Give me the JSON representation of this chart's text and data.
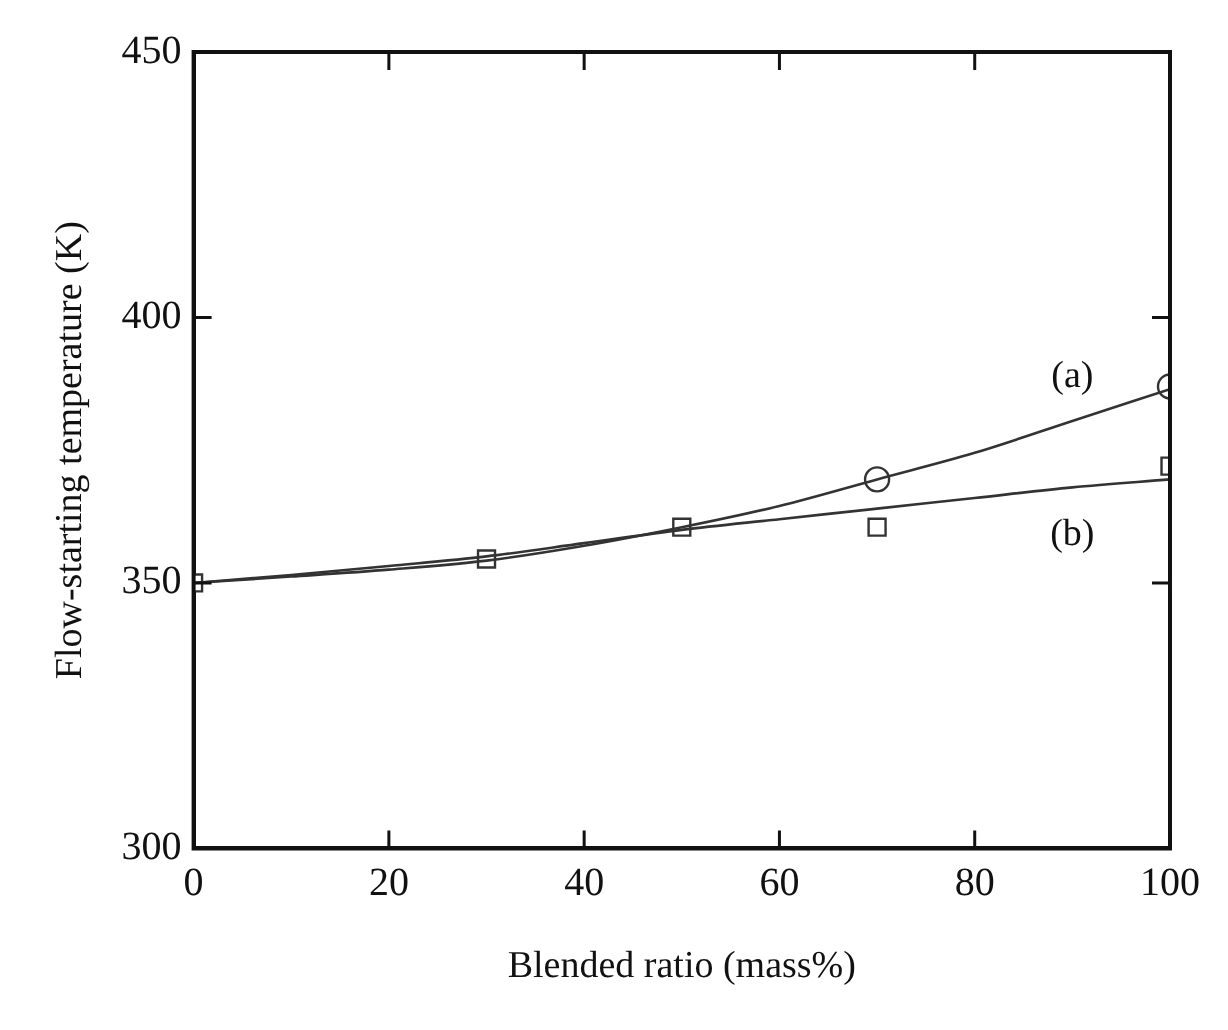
{
  "chart_data": {
    "type": "scatter",
    "xlabel": "Blended ratio (mass%)",
    "ylabel": "Flow-starting temperature (K)",
    "xlim": [
      0,
      100
    ],
    "xticks": [
      0,
      20,
      40,
      60,
      80,
      100
    ],
    "ylim": [
      300,
      450
    ],
    "yticks": [
      300,
      350,
      400,
      450
    ],
    "grid": false,
    "legend": false,
    "series": [
      {
        "type": "line",
        "name": "(a)",
        "color": "#333333",
        "marker": "none",
        "x": [
          0,
          10,
          20,
          30,
          40,
          50,
          60,
          70,
          80,
          90,
          100
        ],
        "values": [
          350,
          351.2,
          352.5,
          354.2,
          357,
          360.5,
          364.5,
          369.5,
          374.5,
          380.5,
          386.5
        ]
      },
      {
        "type": "line",
        "name": "(b)",
        "color": "#333333",
        "marker": "none",
        "x": [
          0,
          10,
          20,
          30,
          40,
          50,
          60,
          70,
          80,
          90,
          100
        ],
        "values": [
          350,
          351.5,
          353.2,
          355,
          357.5,
          360,
          362,
          364,
          366,
          368,
          369.5
        ]
      },
      {
        "type": "scatter",
        "color": "#333333",
        "marker": "circle",
        "x": [
          70,
          100
        ],
        "values": [
          369.5,
          387
        ]
      },
      {
        "type": "scatter",
        "color": "#333333",
        "marker": "square",
        "x": [
          0,
          30,
          50,
          70,
          100
        ],
        "values": [
          350,
          354.5,
          360.5,
          360.5,
          372
        ]
      }
    ]
  }
}
